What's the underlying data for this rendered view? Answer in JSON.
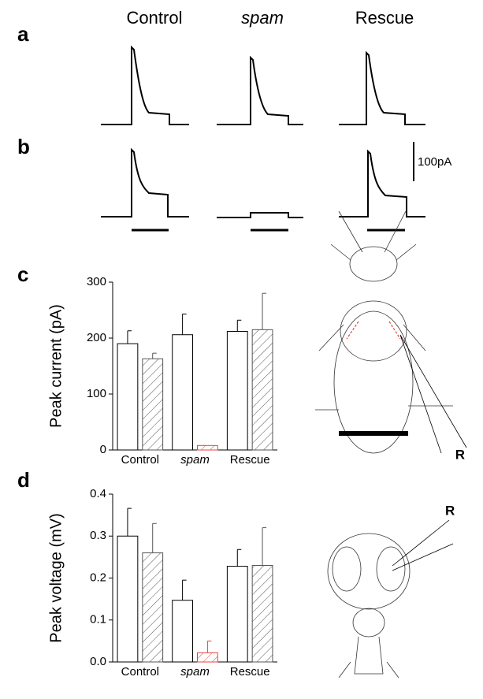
{
  "panels": [
    "a",
    "b",
    "c",
    "d"
  ],
  "columns": [
    "Control",
    "spam",
    "Rescue"
  ],
  "scale_bar": "100pA",
  "electrode_labels": [
    "R",
    "R"
  ],
  "chart_data": [
    {
      "type": "bar",
      "ylabel": "Peak current (pA)",
      "categories": [
        "Control",
        "spam",
        "Rescue"
      ],
      "series": [
        {
          "color": "#000000",
          "pattern": "open",
          "values": [
            190,
            206,
            212
          ],
          "error": [
            23,
            37,
            20
          ]
        },
        {
          "color": "#000000",
          "pattern": "hatch",
          "colors": [
            "#555555",
            "#e8413c",
            "#555555"
          ],
          "values": [
            163,
            8,
            215
          ],
          "error": [
            10,
            null,
            65
          ]
        }
      ],
      "ylim": [
        0,
        300
      ],
      "yticks": [
        0,
        100,
        200,
        300
      ]
    },
    {
      "type": "bar",
      "ylabel": "Peak voltage (mV)",
      "categories": [
        "Control",
        "spam",
        "Rescue"
      ],
      "series": [
        {
          "color": "#000000",
          "pattern": "open",
          "values": [
            0.3,
            0.147,
            0.228
          ],
          "error": [
            0.066,
            0.048,
            0.04
          ]
        },
        {
          "color": "#000000",
          "pattern": "hatch",
          "colors": [
            "#555555",
            "#e8413c",
            "#555555"
          ],
          "values": [
            0.26,
            0.022,
            0.23
          ],
          "error": [
            0.07,
            0.028,
            0.09
          ]
        }
      ],
      "ylim": [
        0,
        0.4
      ],
      "yticks": [
        {
          "value": 0,
          "label": "0.0"
        },
        0.1,
        0.2,
        0.3,
        0.4
      ]
    }
  ]
}
